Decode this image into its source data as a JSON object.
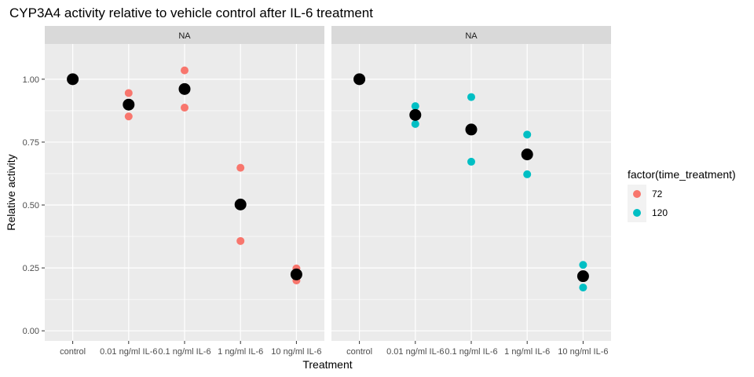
{
  "chart_data": {
    "type": "scatter",
    "title": "CYP3A4 activity relative to vehicle control after IL-6 treatment",
    "xlabel": "Treatment",
    "ylabel": "Relative activity",
    "categories": [
      "control",
      "0.01 ng/ml IL-6",
      "0.1 ng/ml IL-6",
      "1 ng/ml IL-6",
      "10 ng/ml IL-6"
    ],
    "ylim": [
      -0.04,
      1.14
    ],
    "yticks": [
      0.0,
      0.25,
      0.5,
      0.75,
      1.0
    ],
    "ytick_labels": [
      "0.00",
      "0.25",
      "0.50",
      "0.75",
      "1.00"
    ],
    "grid": true,
    "legend": {
      "title": "factor(time_treatment)",
      "placement": "right",
      "entries": [
        {
          "label": "72",
          "color": "#F8766D"
        },
        {
          "label": "120",
          "color": "#00BFC4"
        }
      ]
    },
    "panels": [
      {
        "strip": "NA",
        "replicates": [
          {
            "group": "72",
            "points": [
              {
                "x": "control",
                "y": 1.0
              },
              {
                "x": "0.01 ng/ml IL-6",
                "y": 0.945
              },
              {
                "x": "0.01 ng/ml IL-6",
                "y": 0.852
              },
              {
                "x": "0.1 ng/ml IL-6",
                "y": 1.035
              },
              {
                "x": "0.1 ng/ml IL-6",
                "y": 0.887
              },
              {
                "x": "1 ng/ml IL-6",
                "y": 0.648
              },
              {
                "x": "1 ng/ml IL-6",
                "y": 0.357
              },
              {
                "x": "10 ng/ml IL-6",
                "y": 0.248
              },
              {
                "x": "10 ng/ml IL-6",
                "y": 0.2
              }
            ]
          }
        ],
        "means": [
          {
            "x": "control",
            "y": 1.0
          },
          {
            "x": "0.01 ng/ml IL-6",
            "y": 0.899
          },
          {
            "x": "0.1 ng/ml IL-6",
            "y": 0.961
          },
          {
            "x": "1 ng/ml IL-6",
            "y": 0.502
          },
          {
            "x": "10 ng/ml IL-6",
            "y": 0.224
          }
        ]
      },
      {
        "strip": "NA",
        "replicates": [
          {
            "group": "120",
            "points": [
              {
                "x": "control",
                "y": 1.0
              },
              {
                "x": "0.01 ng/ml IL-6",
                "y": 0.893
              },
              {
                "x": "0.01 ng/ml IL-6",
                "y": 0.822
              },
              {
                "x": "0.1 ng/ml IL-6",
                "y": 0.929
              },
              {
                "x": "0.1 ng/ml IL-6",
                "y": 0.672
              },
              {
                "x": "1 ng/ml IL-6",
                "y": 0.78
              },
              {
                "x": "1 ng/ml IL-6",
                "y": 0.622
              },
              {
                "x": "10 ng/ml IL-6",
                "y": 0.262
              },
              {
                "x": "10 ng/ml IL-6",
                "y": 0.172
              }
            ]
          }
        ],
        "means": [
          {
            "x": "control",
            "y": 1.0
          },
          {
            "x": "0.01 ng/ml IL-6",
            "y": 0.858
          },
          {
            "x": "0.1 ng/ml IL-6",
            "y": 0.8
          },
          {
            "x": "1 ng/ml IL-6",
            "y": 0.701
          },
          {
            "x": "10 ng/ml IL-6",
            "y": 0.217
          }
        ]
      }
    ],
    "colors": {
      "72": "#F8766D",
      "120": "#00BFC4",
      "mean": "#000000",
      "panel_bg": "#EBEBEB",
      "strip_bg": "#D9D9D9",
      "grid": "#FFFFFF"
    }
  }
}
